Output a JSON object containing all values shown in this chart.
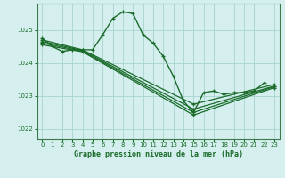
{
  "background_color": "#d4efee",
  "grid_color": "#a8d4d0",
  "line_color": "#1a6b2a",
  "marker_color": "#1a6b2a",
  "title": "Graphe pression niveau de la mer (hPa)",
  "xlim": [
    -0.5,
    23.5
  ],
  "ylim": [
    1021.7,
    1025.8
  ],
  "yticks": [
    1022,
    1023,
    1024,
    1025
  ],
  "xticks": [
    0,
    1,
    2,
    3,
    4,
    5,
    6,
    7,
    8,
    9,
    10,
    11,
    12,
    13,
    14,
    15,
    16,
    17,
    18,
    19,
    20,
    21,
    22,
    23
  ],
  "series": [
    {
      "x": [
        0,
        1,
        2,
        3,
        4,
        5,
        6,
        7,
        8,
        9,
        10,
        11,
        12,
        13,
        14,
        15,
        16,
        17,
        18,
        19,
        20,
        21,
        22
      ],
      "y": [
        1024.75,
        1024.5,
        1024.35,
        1024.4,
        1024.4,
        1024.4,
        1024.85,
        1025.35,
        1025.55,
        1025.5,
        1024.85,
        1024.6,
        1024.2,
        1023.6,
        1022.85,
        1022.5,
        1023.1,
        1023.15,
        1023.05,
        1023.1,
        1023.1,
        1023.15,
        1023.4
      ],
      "lw": 1.0,
      "ms": 3.5
    },
    {
      "x": [
        0,
        4,
        15,
        23
      ],
      "y": [
        1024.7,
        1024.4,
        1022.75,
        1023.35
      ],
      "lw": 0.9,
      "ms": 3.0
    },
    {
      "x": [
        0,
        4,
        15,
        23
      ],
      "y": [
        1024.65,
        1024.38,
        1022.6,
        1023.3
      ],
      "lw": 0.9,
      "ms": 3.0
    },
    {
      "x": [
        0,
        4,
        15,
        23
      ],
      "y": [
        1024.6,
        1024.36,
        1022.5,
        1023.28
      ],
      "lw": 0.9,
      "ms": 3.0
    },
    {
      "x": [
        0,
        4,
        15,
        23
      ],
      "y": [
        1024.55,
        1024.34,
        1022.42,
        1023.25
      ],
      "lw": 0.9,
      "ms": 3.0
    }
  ]
}
